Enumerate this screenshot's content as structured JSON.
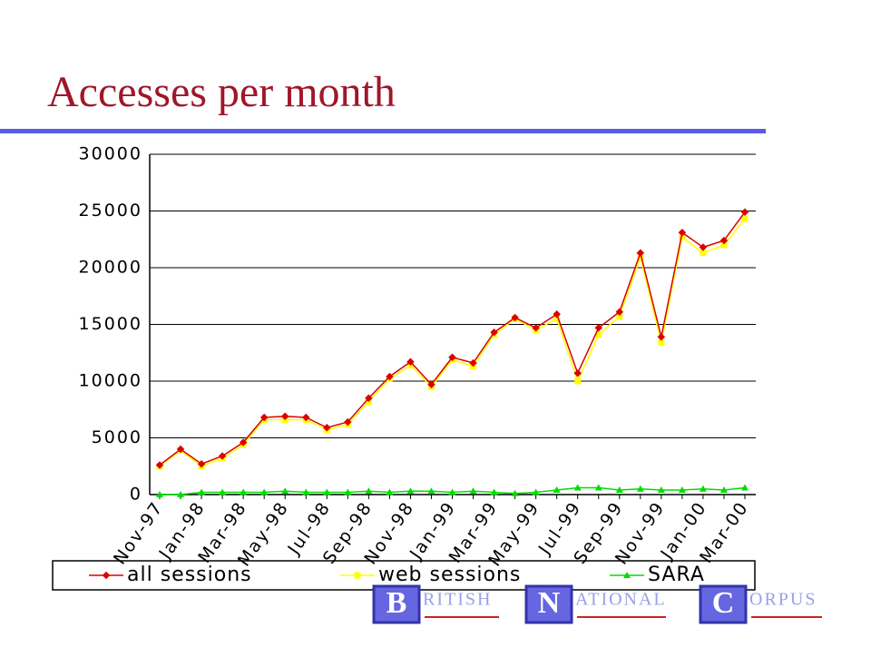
{
  "chart_data": {
    "type": "line",
    "title": "Accesses per month",
    "categories": [
      "Nov-97",
      null,
      "Jan-98",
      null,
      "Mar-98",
      null,
      "May-98",
      null,
      "Jul-98",
      null,
      "Sep-98",
      null,
      "Nov-98",
      null,
      "Jan-99",
      null,
      "Mar-99",
      null,
      "May-99",
      null,
      "Jul-99",
      null,
      "Sep-99",
      null,
      "Nov-99",
      null,
      "Jan-00",
      null,
      "Mar-00"
    ],
    "series": [
      {
        "name": "all sessions",
        "color": "#dd0000",
        "values": [
          2600,
          4000,
          2700,
          3400,
          4600,
          6800,
          6900,
          6800,
          5900,
          6400,
          8500,
          10400,
          11700,
          9700,
          12100,
          11600,
          14300,
          15600,
          14700,
          15900,
          10700,
          14700,
          16100,
          21300,
          13900,
          23100,
          21800,
          22400,
          24900
        ]
      },
      {
        "name": "web sessions",
        "color": "#ffff00",
        "values": [
          2500,
          3900,
          2500,
          3200,
          4400,
          6600,
          6600,
          6600,
          5700,
          6200,
          8200,
          10200,
          11400,
          9500,
          11900,
          11300,
          14100,
          15500,
          14500,
          15500,
          10000,
          14100,
          15700,
          20900,
          13400,
          22700,
          21300,
          22000,
          24300
        ]
      },
      {
        "name": "SARA",
        "color": "#00dd00",
        "values": [
          0,
          0,
          200,
          200,
          200,
          200,
          300,
          200,
          200,
          200,
          300,
          200,
          300,
          300,
          200,
          300,
          200,
          100,
          200,
          400,
          600,
          600,
          400,
          500,
          400,
          400,
          500,
          400,
          600
        ]
      }
    ],
    "ylim": [
      0,
      30000
    ],
    "yticks": [
      0,
      5000,
      10000,
      15000,
      20000,
      25000,
      30000
    ],
    "grid": true
  },
  "logo": {
    "letters": [
      "B",
      "N",
      "C"
    ],
    "words": [
      "RITISH",
      "ATIONAL",
      "ORPUS"
    ]
  }
}
